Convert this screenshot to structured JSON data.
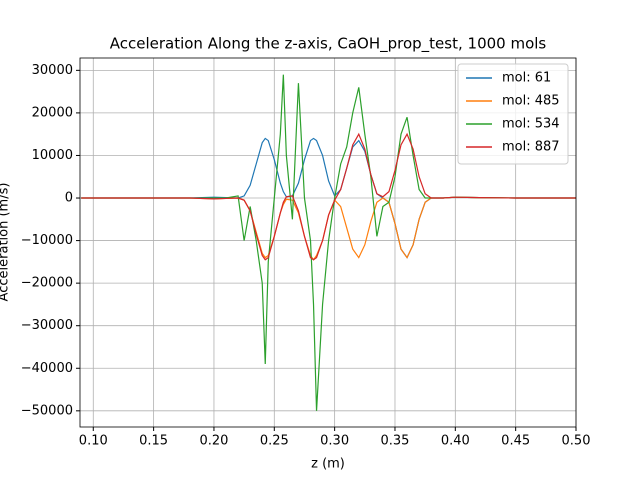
{
  "chart_data": {
    "type": "line",
    "title": "Acceleration Along the z-axis, CaOH_prop_test, 1000 mols",
    "xlabel": "z (m)",
    "ylabel": "Acceleration (m/s)",
    "x": [
      0.09,
      0.12,
      0.15,
      0.18,
      0.2,
      0.21,
      0.22,
      0.225,
      0.23,
      0.235,
      0.24,
      0.2425,
      0.245,
      0.25,
      0.255,
      0.2575,
      0.26,
      0.265,
      0.27,
      0.275,
      0.28,
      0.2825,
      0.285,
      0.29,
      0.295,
      0.3,
      0.305,
      0.31,
      0.315,
      0.32,
      0.325,
      0.33,
      0.335,
      0.34,
      0.345,
      0.35,
      0.355,
      0.36,
      0.365,
      0.37,
      0.375,
      0.38,
      0.39,
      0.4,
      0.42,
      0.45,
      0.5
    ],
    "series": [
      {
        "name": "mol: 61",
        "color": "#1f77b4",
        "values": [
          0,
          0,
          0,
          0,
          200,
          100,
          0,
          500,
          3000,
          8000,
          13000,
          14000,
          13500,
          9000,
          3500,
          1500,
          300,
          500,
          3500,
          9000,
          13500,
          14000,
          13500,
          10000,
          4000,
          500,
          2000,
          7000,
          12000,
          13500,
          11000,
          5500,
          1000,
          0,
          -1000,
          -6000,
          -12000,
          -14000,
          -11000,
          -5000,
          -1000,
          0,
          0,
          200,
          100,
          0,
          0
        ]
      },
      {
        "name": "mol: 485",
        "color": "#ff7f0e",
        "values": [
          0,
          0,
          0,
          0,
          -200,
          -100,
          0,
          -500,
          -3000,
          -8000,
          -13000,
          -14000,
          -13500,
          -9000,
          -3500,
          -1500,
          -300,
          -500,
          -3500,
          -9000,
          -13500,
          -14500,
          -13500,
          -10000,
          -4000,
          -500,
          -2000,
          -7000,
          -12000,
          -14000,
          -11000,
          -5500,
          -1000,
          0,
          -1000,
          -6000,
          -12000,
          -14000,
          -11000,
          -5000,
          -1000,
          0,
          0,
          200,
          100,
          0,
          0
        ]
      },
      {
        "name": "mol: 534",
        "color": "#2ca02c",
        "values": [
          0,
          0,
          0,
          0,
          0,
          0,
          500,
          -10000,
          -2000,
          -10000,
          -20000,
          -39000,
          -15000,
          0,
          15000,
          29000,
          10000,
          -5000,
          27000,
          0,
          -10000,
          -25000,
          -50000,
          -25000,
          -10000,
          0,
          8000,
          12000,
          20000,
          26000,
          15000,
          5000,
          -9000,
          -2000,
          -1000,
          5000,
          15000,
          19000,
          10000,
          2000,
          0,
          0,
          0,
          200,
          100,
          0,
          0
        ]
      },
      {
        "name": "mol: 887",
        "color": "#d62728",
        "values": [
          0,
          0,
          0,
          0,
          -200,
          -100,
          0,
          -500,
          -3000,
          -8500,
          -13500,
          -14500,
          -14000,
          -9000,
          -3500,
          -1000,
          300,
          500,
          -3000,
          -9000,
          -14000,
          -14500,
          -14000,
          -10000,
          -4000,
          -500,
          2000,
          7000,
          12500,
          15000,
          11500,
          5500,
          1000,
          300,
          1500,
          6500,
          12500,
          15000,
          11500,
          5000,
          1000,
          0,
          0,
          200,
          100,
          0,
          0
        ]
      }
    ],
    "xlim": [
      0.089,
      0.5
    ],
    "ylim": [
      -53800,
      32900
    ],
    "xticks": [
      {
        "value": 0.1,
        "label": "0.10"
      },
      {
        "value": 0.15,
        "label": "0.15"
      },
      {
        "value": 0.2,
        "label": "0.20"
      },
      {
        "value": 0.25,
        "label": "0.25"
      },
      {
        "value": 0.3,
        "label": "0.30"
      },
      {
        "value": 0.35,
        "label": "0.35"
      },
      {
        "value": 0.4,
        "label": "0.40"
      },
      {
        "value": 0.45,
        "label": "0.45"
      },
      {
        "value": 0.5,
        "label": "0.50"
      }
    ],
    "yticks": [
      {
        "value": -50000,
        "label": "−50000"
      },
      {
        "value": -40000,
        "label": "−40000"
      },
      {
        "value": -30000,
        "label": "−30000"
      },
      {
        "value": -20000,
        "label": "−20000"
      },
      {
        "value": -10000,
        "label": "−10000"
      },
      0,
      10000,
      20000,
      30000
    ],
    "grid": true,
    "legend": "upper right"
  }
}
